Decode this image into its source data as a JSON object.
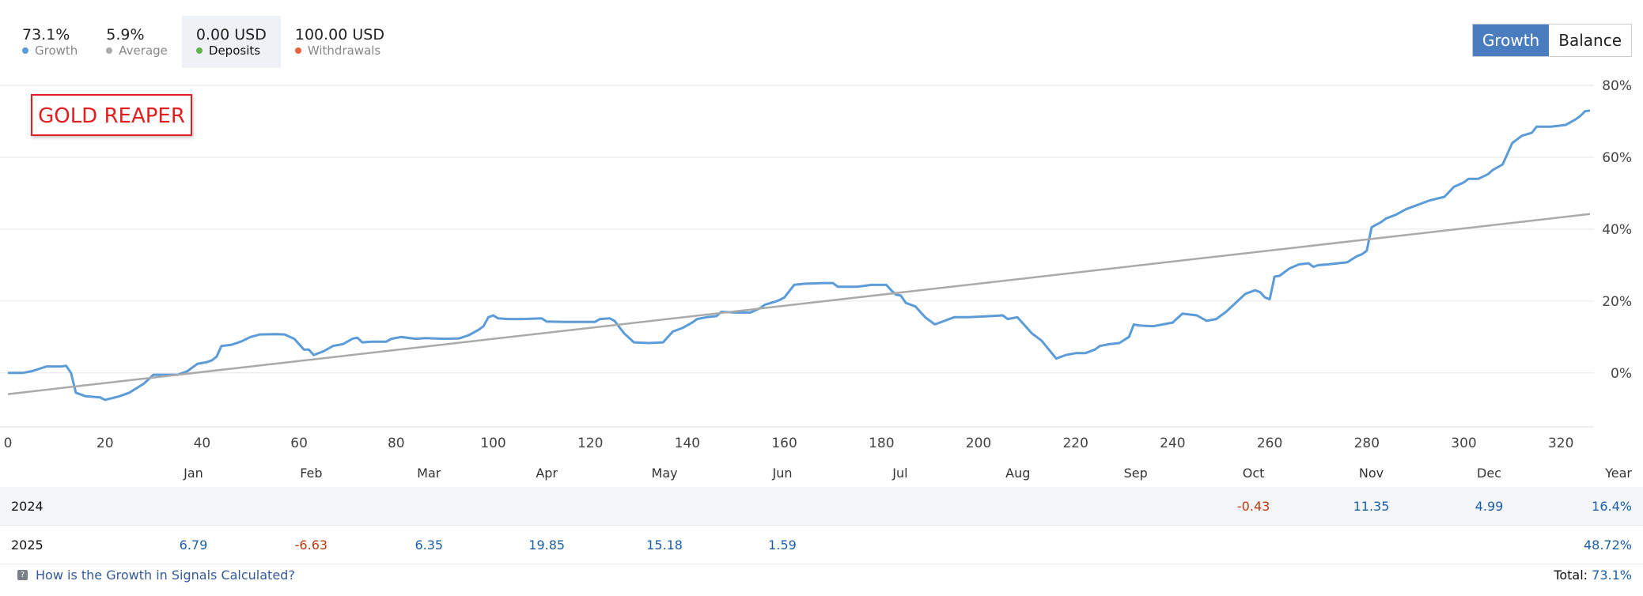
{
  "stats": [
    {
      "value": "73.1%",
      "label": "Growth",
      "color": "#5b9bd8"
    },
    {
      "value": "5.9%",
      "label": "Average",
      "color": "#aaaaaa"
    },
    {
      "value": "0.00 USD",
      "label": "Deposits",
      "color": "#5fb34a"
    },
    {
      "value": "100.00 USD",
      "label": "Withdrawals",
      "color": "#e8643c"
    }
  ],
  "toggle": {
    "growth": "Growth",
    "balance": "Balance"
  },
  "badge": "GOLD REAPER",
  "chart_data": {
    "type": "line",
    "xlim": [
      0,
      326
    ],
    "ylim": [
      -15,
      80
    ],
    "x_ticks": [
      0,
      20,
      40,
      60,
      80,
      100,
      120,
      140,
      160,
      180,
      200,
      220,
      240,
      260,
      280,
      300,
      320
    ],
    "y_ticks": [
      {
        "v": 80,
        "label": "80%"
      },
      {
        "v": 60,
        "label": "60%"
      },
      {
        "v": 40,
        "label": "40%"
      },
      {
        "v": 20,
        "label": "20%"
      },
      {
        "v": 0,
        "label": "0%"
      }
    ],
    "grid": true,
    "series": [
      {
        "color": "#5b9bd8",
        "points": [
          [
            0,
            0
          ],
          [
            3,
            0
          ],
          [
            5,
            0.5
          ],
          [
            8,
            1.8
          ],
          [
            11,
            1.8
          ],
          [
            12,
            2
          ],
          [
            13,
            0
          ],
          [
            14,
            -5.5
          ],
          [
            16,
            -6.5
          ],
          [
            19,
            -6.8
          ],
          [
            20,
            -7.5
          ],
          [
            23,
            -6.5
          ],
          [
            25,
            -5.5
          ],
          [
            28,
            -3
          ],
          [
            30,
            -0.5
          ],
          [
            33,
            -0.5
          ],
          [
            35,
            -0.5
          ],
          [
            37,
            0.5
          ],
          [
            39,
            2.5
          ],
          [
            41,
            3
          ],
          [
            42,
            3.5
          ],
          [
            43,
            4.5
          ],
          [
            44,
            7.5
          ],
          [
            46,
            7.8
          ],
          [
            48,
            8.7
          ],
          [
            50,
            10
          ],
          [
            52,
            10.7
          ],
          [
            55,
            10.8
          ],
          [
            57,
            10.7
          ],
          [
            59,
            9.5
          ],
          [
            61,
            6.5
          ],
          [
            62,
            6.5
          ],
          [
            63,
            5
          ],
          [
            65,
            6
          ],
          [
            67,
            7.5
          ],
          [
            69,
            8
          ],
          [
            71,
            9.5
          ],
          [
            72,
            9.8
          ],
          [
            73,
            8.5
          ],
          [
            75,
            8.7
          ],
          [
            78,
            8.7
          ],
          [
            79,
            9.5
          ],
          [
            81,
            10
          ],
          [
            84,
            9.5
          ],
          [
            86,
            9.7
          ],
          [
            90,
            9.5
          ],
          [
            93,
            9.6
          ],
          [
            95,
            10.5
          ],
          [
            97,
            12
          ],
          [
            98,
            13
          ],
          [
            99,
            15.5
          ],
          [
            100,
            16
          ],
          [
            101,
            15.2
          ],
          [
            103,
            15
          ],
          [
            106,
            15
          ],
          [
            110,
            15.2
          ],
          [
            111,
            14.3
          ],
          [
            115,
            14.2
          ],
          [
            118,
            14.2
          ],
          [
            121,
            14.2
          ],
          [
            122,
            15
          ],
          [
            124,
            15.2
          ],
          [
            125,
            14.5
          ],
          [
            127,
            11
          ],
          [
            129,
            8.5
          ],
          [
            132,
            8.3
          ],
          [
            135,
            8.5
          ],
          [
            137,
            11.5
          ],
          [
            139,
            12.5
          ],
          [
            141,
            14
          ],
          [
            142,
            15
          ],
          [
            144,
            15.5
          ],
          [
            146,
            15.8
          ],
          [
            147,
            17
          ],
          [
            150,
            16.8
          ],
          [
            153,
            16.8
          ],
          [
            155,
            18
          ],
          [
            156,
            19
          ],
          [
            158,
            19.8
          ],
          [
            159,
            20.3
          ],
          [
            160,
            21
          ],
          [
            162,
            24.5
          ],
          [
            164,
            24.8
          ],
          [
            168,
            25
          ],
          [
            170,
            25
          ],
          [
            171,
            24
          ],
          [
            175,
            24
          ],
          [
            178,
            24.5
          ],
          [
            181,
            24.5
          ],
          [
            182,
            23
          ],
          [
            183,
            21.8
          ],
          [
            184,
            21.5
          ],
          [
            185,
            19.5
          ],
          [
            187,
            18.5
          ],
          [
            189,
            15.5
          ],
          [
            191,
            13.5
          ],
          [
            193,
            14.5
          ],
          [
            195,
            15.5
          ],
          [
            198,
            15.5
          ],
          [
            201,
            15.7
          ],
          [
            205,
            16
          ],
          [
            206,
            15
          ],
          [
            208,
            15.5
          ],
          [
            209,
            14
          ],
          [
            211,
            11
          ],
          [
            213,
            9
          ],
          [
            216,
            4
          ],
          [
            218,
            5
          ],
          [
            220,
            5.5
          ],
          [
            222,
            5.5
          ],
          [
            224,
            6.5
          ],
          [
            225,
            7.5
          ],
          [
            227,
            8
          ],
          [
            229,
            8.3
          ],
          [
            231,
            10
          ],
          [
            232,
            13.5
          ],
          [
            233,
            13.2
          ],
          [
            236,
            13
          ],
          [
            238,
            13.5
          ],
          [
            240,
            14
          ],
          [
            242,
            16.5
          ],
          [
            245,
            16
          ],
          [
            247,
            14.5
          ],
          [
            249,
            15
          ],
          [
            251,
            17
          ],
          [
            253,
            19.5
          ],
          [
            255,
            22
          ],
          [
            257,
            23
          ],
          [
            258,
            22.5
          ],
          [
            259,
            21
          ],
          [
            260,
            20.5
          ],
          [
            261,
            26.8
          ],
          [
            262,
            27
          ],
          [
            263,
            28
          ],
          [
            264,
            29
          ],
          [
            266,
            30.2
          ],
          [
            268,
            30.5
          ],
          [
            269,
            29.5
          ],
          [
            270,
            30
          ],
          [
            272,
            30.2
          ],
          [
            276,
            30.8
          ],
          [
            278,
            32.5
          ],
          [
            279,
            33
          ],
          [
            280,
            34
          ],
          [
            281,
            40.5
          ],
          [
            283,
            42
          ],
          [
            284,
            43
          ],
          [
            286,
            44
          ],
          [
            288,
            45.5
          ],
          [
            290,
            46.5
          ],
          [
            293,
            48
          ],
          [
            296,
            49
          ],
          [
            298,
            51.8
          ],
          [
            300,
            53
          ],
          [
            301,
            54
          ],
          [
            303,
            54
          ],
          [
            305,
            55.3
          ],
          [
            306,
            56.5
          ],
          [
            308,
            58
          ],
          [
            309,
            61
          ],
          [
            310,
            64
          ],
          [
            312,
            66
          ],
          [
            314,
            66.8
          ],
          [
            315,
            68.5
          ],
          [
            318,
            68.5
          ],
          [
            321,
            69
          ],
          [
            323,
            70.5
          ],
          [
            324,
            71.5
          ],
          [
            325,
            72.8
          ],
          [
            326,
            73
          ]
        ]
      },
      {
        "color": "#aaaaaa",
        "points": [
          [
            0,
            -5.9
          ],
          [
            326,
            44.2
          ]
        ]
      }
    ]
  },
  "months_header": [
    "",
    "Jan",
    "Feb",
    "Mar",
    "Apr",
    "May",
    "Jun",
    "Jul",
    "Aug",
    "Sep",
    "Oct",
    "Nov",
    "Dec",
    "Year"
  ],
  "years": [
    {
      "year": "2024",
      "cells": [
        "",
        "",
        "",
        "",
        "",
        "",
        "",
        "",
        "",
        "-0.43",
        "11.35",
        "4.99"
      ],
      "total": "16.4%"
    },
    {
      "year": "2025",
      "cells": [
        "6.79",
        "-6.63",
        "6.35",
        "19.85",
        "15.18",
        "1.59",
        "",
        "",
        "",
        "",
        "",
        ""
      ],
      "total": "48.72%"
    }
  ],
  "footer": {
    "help": "How is the Growth in Signals Calculated?",
    "total_label": "Total:",
    "total_value": "73.1%"
  }
}
